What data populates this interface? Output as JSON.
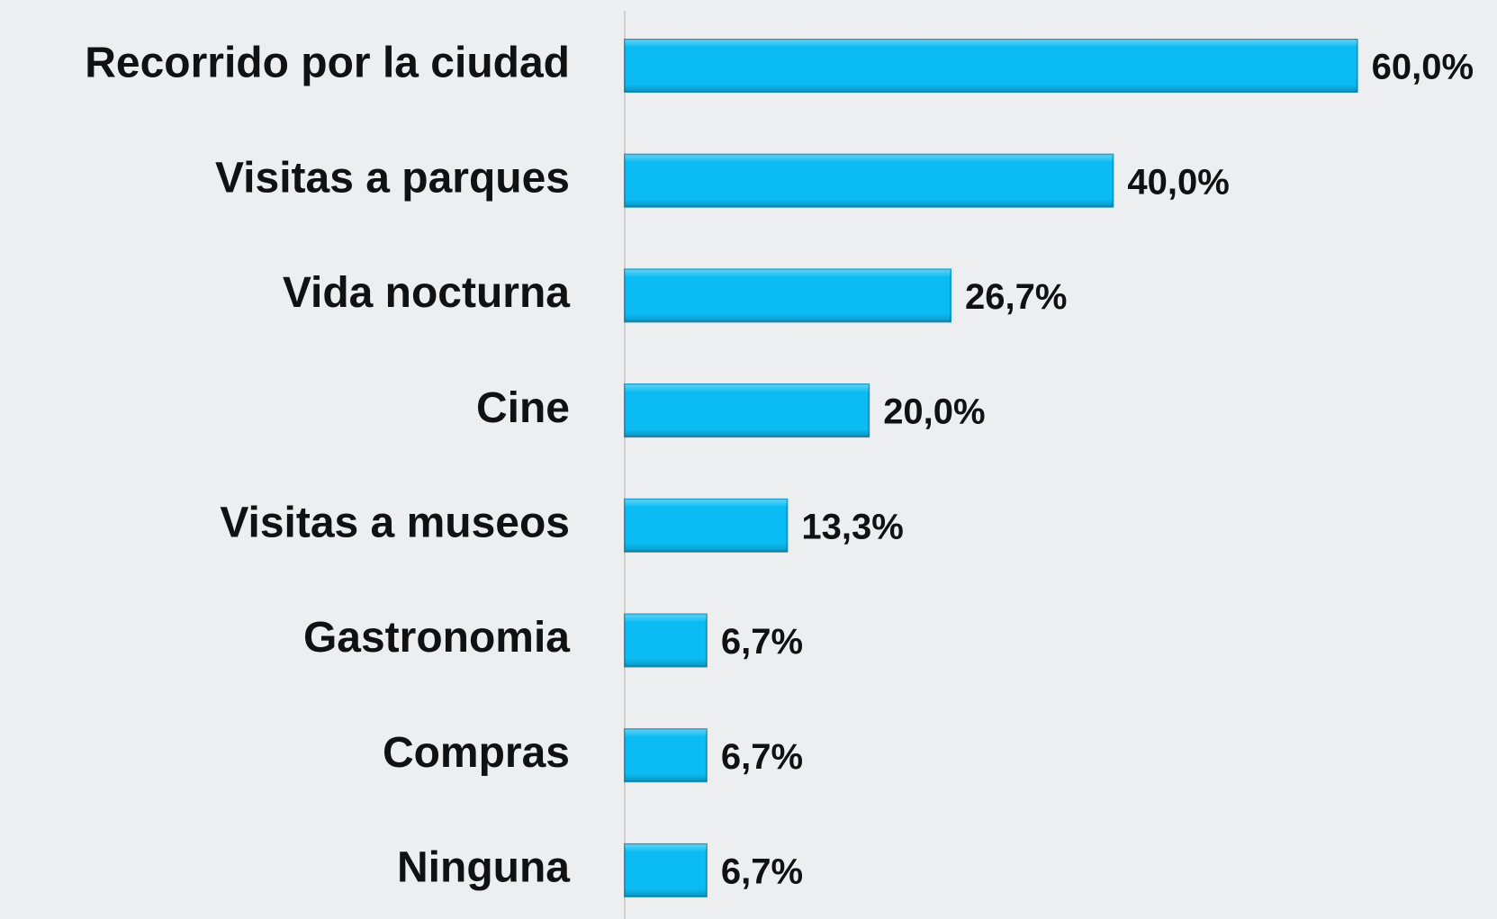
{
  "chart_data": {
    "type": "bar",
    "orientation": "horizontal",
    "categories": [
      "Recorrido por la ciudad",
      "Visitas a parques",
      "Vida nocturna",
      "Cine",
      "Visitas a museos",
      "Gastronomia",
      "Compras",
      "Ninguna"
    ],
    "values": [
      60,
      40,
      26.7,
      20,
      13.3,
      6.7,
      6.7,
      6.7
    ],
    "value_labels": [
      "60,0%",
      "40,0%",
      "26,7%",
      "20,0%",
      "13,3%",
      "6,7%",
      "6,7%",
      "6,7%"
    ],
    "color": "#0bbcf4"
  }
}
